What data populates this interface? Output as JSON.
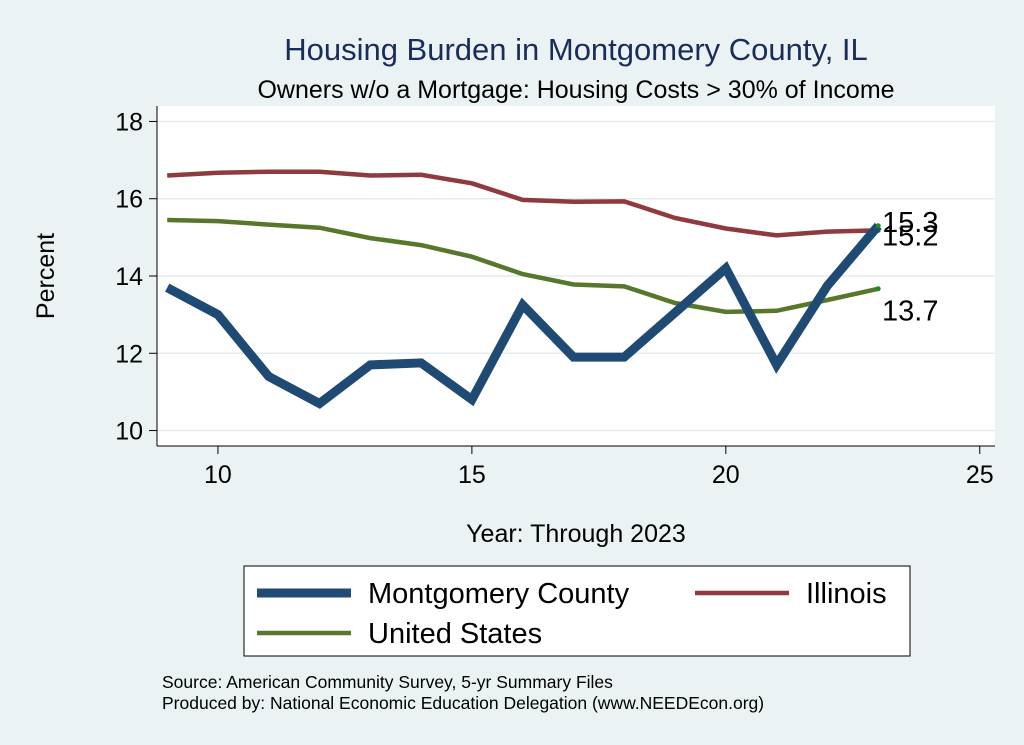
{
  "chart_data": {
    "type": "line",
    "title": "Housing Burden in Montgomery County, IL",
    "subtitle": "Owners w/o a Mortgage: Housing Costs > 30% of Income",
    "xlabel": "Year: Through 2023",
    "ylabel": "Percent",
    "xlim": [
      8.8,
      25.3
    ],
    "ylim": [
      9.6,
      18.4
    ],
    "xticks": [
      10,
      15,
      20,
      25
    ],
    "yticks": [
      10,
      12,
      14,
      16,
      18
    ],
    "grid": true,
    "legend_position": "bottom",
    "series": [
      {
        "name": "Montgomery County",
        "color": "#1f4a74",
        "x": [
          9,
          10,
          11,
          12,
          13,
          14,
          15,
          16,
          17,
          18,
          19,
          20,
          21,
          22,
          23
        ],
        "y": [
          13.7,
          13.0,
          11.4,
          10.7,
          11.7,
          11.75,
          10.8,
          13.25,
          11.9,
          11.9,
          13.05,
          14.2,
          11.7,
          13.75,
          15.3
        ],
        "end_label": "15.3"
      },
      {
        "name": "Illinois",
        "color": "#8e3a3e",
        "x": [
          9,
          10,
          11,
          12,
          13,
          14,
          15,
          16,
          17,
          18,
          19,
          20,
          21,
          22,
          23
        ],
        "y": [
          16.6,
          16.67,
          16.7,
          16.7,
          16.6,
          16.62,
          16.4,
          15.97,
          15.92,
          15.93,
          15.5,
          15.23,
          15.05,
          15.15,
          15.18
        ],
        "end_label": "15.2"
      },
      {
        "name": "United States",
        "color": "#57782b",
        "x": [
          9,
          10,
          11,
          12,
          13,
          14,
          15,
          16,
          17,
          18,
          19,
          20,
          21,
          22,
          23
        ],
        "y": [
          15.45,
          15.42,
          15.33,
          15.25,
          14.98,
          14.8,
          14.5,
          14.05,
          13.78,
          13.73,
          13.3,
          13.07,
          13.1,
          13.38,
          13.67
        ],
        "end_label": "13.7"
      }
    ],
    "source_lines": [
      "Source: American Community Survey, 5-yr Summary Files",
      "Produced by: National Economic Education Delegation (www.NEEDEcon.org)"
    ]
  }
}
